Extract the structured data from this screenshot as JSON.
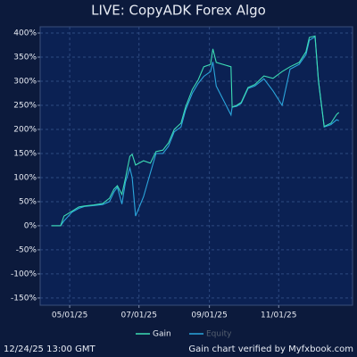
{
  "chart_data": {
    "type": "line",
    "title": "LIVE: CopyADK Forex Algo",
    "x": [
      "04/15/25",
      "04/23/25",
      "04/26/25",
      "05/03/25",
      "05/09/25",
      "05/14/25",
      "05/22/25",
      "05/30/25",
      "06/05/25",
      "06/09/25",
      "06/12/25",
      "06/16/25",
      "06/19/25",
      "06/23/25",
      "06/25/25",
      "06/28/25",
      "07/05/25",
      "07/11/25",
      "07/16/25",
      "07/22/25",
      "07/27/25",
      "08/01/25",
      "08/07/25",
      "08/11/25",
      "08/17/25",
      "08/22/25",
      "08/27/25",
      "09/02/25",
      "09/04/25",
      "09/07/25",
      "09/20/25",
      "09/21/25",
      "09/25/25",
      "09/29/25",
      "10/05/25",
      "10/11/25",
      "10/19/25",
      "10/27/25",
      "11/04/25",
      "11/11/25",
      "11/19/25",
      "11/25/25",
      "11/28/25",
      "12/03/25",
      "12/06/25",
      "12/11/25",
      "12/17/25",
      "12/22/25",
      "12/24/25"
    ],
    "series": [
      {
        "name": "Gain",
        "color": "#3ddcb4",
        "values": [
          0,
          0,
          20,
          30,
          39,
          41,
          43,
          46,
          57,
          76,
          83,
          65,
          98,
          144,
          148,
          126,
          135,
          130,
          154,
          157,
          172,
          200,
          213,
          246,
          283,
          302,
          330,
          335,
          367,
          339,
          330,
          246,
          250,
          256,
          287,
          293,
          311,
          306,
          320,
          330,
          339,
          361,
          391,
          394,
          302,
          206,
          213,
          231,
          235
        ]
      },
      {
        "name": "Equity",
        "color": "#2ba6dc",
        "legend_color": "#556070",
        "values": [
          0,
          0,
          10,
          28,
          36,
          40,
          42,
          44,
          50,
          70,
          80,
          45,
          90,
          120,
          100,
          20,
          60,
          110,
          150,
          150,
          165,
          195,
          205,
          240,
          275,
          295,
          310,
          320,
          340,
          290,
          230,
          246,
          248,
          254,
          285,
          290,
          305,
          280,
          250,
          325,
          335,
          355,
          385,
          392,
          300,
          205,
          210,
          220,
          218
        ]
      }
    ],
    "xlim": [
      "04/05/25",
      "01/05/26"
    ],
    "xticks": [
      "05/01/25",
      "07/01/25",
      "09/01/25",
      "11/01/25"
    ],
    "ylim": [
      -165,
      413
    ],
    "yticks": [
      {
        "value": -150,
        "label": "-150%"
      },
      {
        "value": -100,
        "label": "-100%"
      },
      {
        "value": -50,
        "label": "-50%"
      },
      {
        "value": 0,
        "label": "0%"
      },
      {
        "value": 50,
        "label": "50%"
      },
      {
        "value": 100,
        "label": "100%"
      },
      {
        "value": 150,
        "label": "150%"
      },
      {
        "value": 200,
        "label": "200%"
      },
      {
        "value": 250,
        "label": "250%"
      },
      {
        "value": 300,
        "label": "300%"
      },
      {
        "value": 350,
        "label": "350%"
      },
      {
        "value": 400,
        "label": "400%"
      }
    ],
    "grid": true,
    "date_stamp": "12/24/25 13:00 GMT",
    "credit": "Gain chart verified by Myfxbook.com"
  }
}
